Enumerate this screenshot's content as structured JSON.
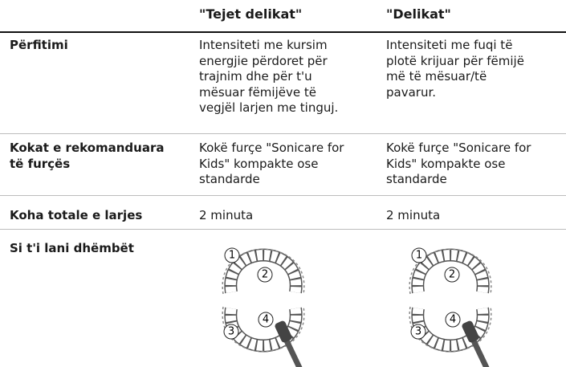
{
  "table": {
    "column_headers": [
      "\"Tejet delikat\"",
      "\"Delikat\""
    ],
    "rows": [
      {
        "label": [
          "Përfitimi"
        ],
        "cells": [
          [
            "Intensiteti me kursim",
            "energjie përdoret për",
            "trajnim dhe për t'u",
            "mësuar fëmijëve të",
            "vegjël larjen me tinguj."
          ],
          [
            "Intensiteti me fuqi të",
            "plotë krijuar për fëmijë",
            "më të mësuar/të",
            "pavarur."
          ]
        ]
      },
      {
        "label": [
          "Kokat e rekomanduara",
          "të furçës"
        ],
        "cells": [
          [
            "Kokë furçe \"Sonicare for",
            "Kids\" kompakte ose",
            "standarde"
          ],
          [
            "Kokë furçe \"Sonicare for",
            "Kids\" kompakte ose",
            "standarde"
          ]
        ]
      },
      {
        "label": [
          "Koha totale e larjes"
        ],
        "cells": [
          [
            "2 minuta"
          ],
          [
            "2 minuta"
          ]
        ]
      },
      {
        "label": [
          "Si t'i lani dhëmbët"
        ],
        "diagram_labels": [
          "1",
          "2",
          "3",
          "4"
        ]
      }
    ]
  }
}
